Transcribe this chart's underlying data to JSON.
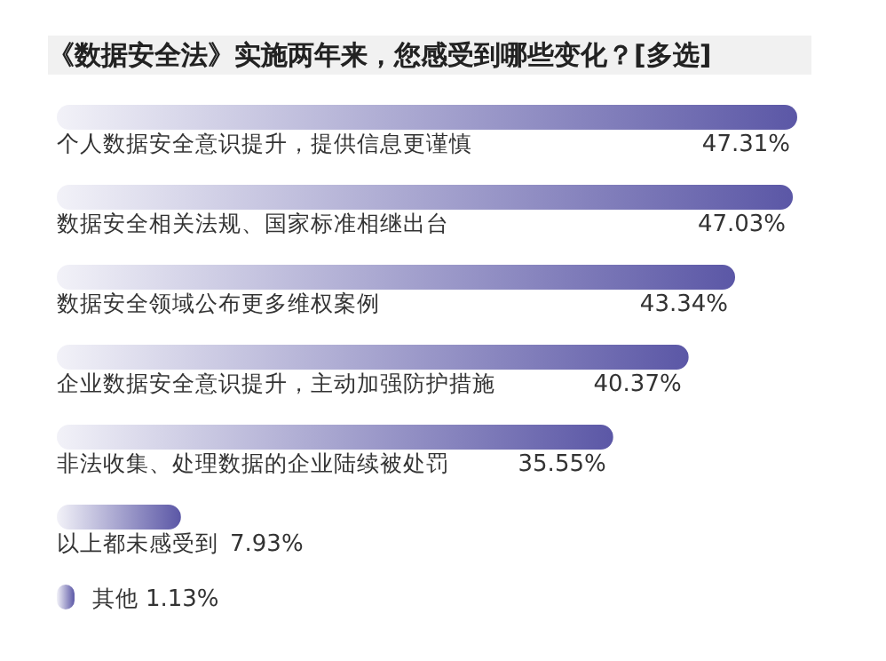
{
  "chart_data": {
    "type": "bar",
    "orientation": "horizontal",
    "title": "《数据安全法》实施两年来，您感受到哪些变化？[多选]",
    "categories": [
      "个人数据安全意识提升，提供信息更谨慎",
      "数据安全相关法规、国家标准相继出台",
      "数据安全领域公布更多维权案例",
      "企业数据安全意识提升，主动加强防护措施",
      "非法收集、处理数据的企业陆续被处罚",
      "以上都未感受到",
      "其他"
    ],
    "values": [
      47.31,
      47.03,
      43.34,
      40.37,
      35.55,
      7.93,
      1.13
    ],
    "value_labels": [
      "47.31%",
      "47.03%",
      "43.34%",
      "40.37%",
      "35.55%",
      "7.93%",
      "1.13%"
    ],
    "color": "#5b57a6"
  }
}
